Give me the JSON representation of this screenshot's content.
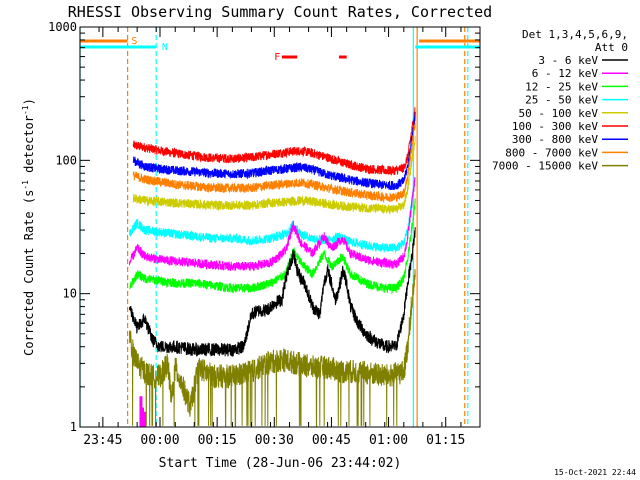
{
  "chart_data": {
    "type": "line",
    "title": "RHESSI Observing Summary Count Rates, Corrected",
    "xlabel": "Start Time (28-Jun-06 23:44:02)",
    "ylabel": "Corrected Count Rate (s",
    "ylabel_sup1": "-1",
    "ylabel_mid": " detector",
    "ylabel_sup2": "-1",
    "ylabel_end": ")",
    "y_scale": "log",
    "ylim": [
      1,
      1000
    ],
    "y_ticks": [
      {
        "v": 1,
        "label": "1"
      },
      {
        "v": 10,
        "label": "10"
      },
      {
        "v": 100,
        "label": "100"
      },
      {
        "v": 1000,
        "label": "1000"
      }
    ],
    "xlim_minutes": [
      -5,
      100
    ],
    "x_ticks": [
      {
        "m": 1,
        "label": "23:45"
      },
      {
        "m": 16,
        "label": "00:00"
      },
      {
        "m": 31,
        "label": "00:15"
      },
      {
        "m": 46,
        "label": "00:30"
      },
      {
        "m": 61,
        "label": "00:45"
      },
      {
        "m": 76,
        "label": "01:00"
      },
      {
        "m": 91,
        "label": "01:15"
      }
    ],
    "legend": {
      "position": "right",
      "header1": "Det 1,3,4,5,6,9,",
      "header2": "Att 0",
      "entries": [
        {
          "label": "3 - 6 keV",
          "color": "#000000"
        },
        {
          "label": "6 - 12 keV",
          "color": "#ff00ff"
        },
        {
          "label": "12 - 25 keV",
          "color": "#00ff00"
        },
        {
          "label": "25 - 50 keV",
          "color": "#00ffff"
        },
        {
          "label": "50 - 100 keV",
          "color": "#cccc00"
        },
        {
          "label": "100 - 300 keV",
          "color": "#ff0000"
        },
        {
          "label": "300 - 800 keV",
          "color": "#0000ff"
        },
        {
          "label": "800 - 7000 keV",
          "color": "#ff7f00"
        },
        {
          "label": "7000 - 15000 keV",
          "color": "#808000"
        }
      ]
    },
    "series": [
      {
        "color": "#ff0000",
        "start": 9,
        "end": 83,
        "points": [
          [
            9,
            130
          ],
          [
            12,
            125
          ],
          [
            16,
            118
          ],
          [
            20,
            113
          ],
          [
            25,
            108
          ],
          [
            30,
            104
          ],
          [
            35,
            103
          ],
          [
            40,
            105
          ],
          [
            45,
            111
          ],
          [
            50,
            116
          ],
          [
            53,
            118
          ],
          [
            56,
            113
          ],
          [
            60,
            105
          ],
          [
            65,
            94
          ],
          [
            70,
            87
          ],
          [
            75,
            84
          ],
          [
            78,
            84
          ],
          [
            80,
            88
          ],
          [
            81,
            105
          ],
          [
            82,
            160
          ],
          [
            83,
            250
          ]
        ]
      },
      {
        "color": "#0000ff",
        "start": 9,
        "end": 83,
        "points": [
          [
            9,
            100
          ],
          [
            12,
            90
          ],
          [
            16,
            86
          ],
          [
            20,
            84
          ],
          [
            25,
            82
          ],
          [
            30,
            80
          ],
          [
            35,
            79
          ],
          [
            40,
            80
          ],
          [
            45,
            84
          ],
          [
            50,
            87
          ],
          [
            53,
            89
          ],
          [
            56,
            85
          ],
          [
            60,
            78
          ],
          [
            65,
            72
          ],
          [
            70,
            68
          ],
          [
            75,
            65
          ],
          [
            78,
            65
          ],
          [
            80,
            70
          ],
          [
            81,
            90
          ],
          [
            82,
            140
          ],
          [
            83,
            220
          ]
        ]
      },
      {
        "color": "#ff7f00",
        "start": 9,
        "end": 83,
        "points": [
          [
            9,
            77
          ],
          [
            12,
            72
          ],
          [
            16,
            69
          ],
          [
            20,
            66
          ],
          [
            25,
            64
          ],
          [
            30,
            62
          ],
          [
            35,
            62
          ],
          [
            40,
            62
          ],
          [
            45,
            65
          ],
          [
            50,
            67
          ],
          [
            53,
            68
          ],
          [
            56,
            66
          ],
          [
            60,
            62
          ],
          [
            65,
            58
          ],
          [
            70,
            55
          ],
          [
            75,
            53
          ],
          [
            78,
            53
          ],
          [
            80,
            57
          ],
          [
            81,
            75
          ],
          [
            82,
            120
          ],
          [
            83,
            190
          ]
        ]
      },
      {
        "color": "#cccc00",
        "start": 9,
        "end": 83,
        "points": [
          [
            9,
            52
          ],
          [
            12,
            50
          ],
          [
            16,
            49
          ],
          [
            20,
            48
          ],
          [
            25,
            47
          ],
          [
            30,
            46
          ],
          [
            35,
            46
          ],
          [
            40,
            46
          ],
          [
            45,
            48
          ],
          [
            50,
            49
          ],
          [
            53,
            50
          ],
          [
            56,
            49
          ],
          [
            60,
            47
          ],
          [
            65,
            45
          ],
          [
            70,
            44
          ],
          [
            75,
            43
          ],
          [
            78,
            43
          ],
          [
            80,
            46
          ],
          [
            81,
            60
          ],
          [
            82,
            95
          ],
          [
            83,
            150
          ]
        ]
      },
      {
        "color": "#00ffff",
        "start": 8,
        "end": 83,
        "points": [
          [
            8,
            28
          ],
          [
            10,
            34
          ],
          [
            12,
            30
          ],
          [
            16,
            29
          ],
          [
            20,
            28
          ],
          [
            25,
            27
          ],
          [
            30,
            26
          ],
          [
            35,
            26
          ],
          [
            40,
            25
          ],
          [
            45,
            26
          ],
          [
            49,
            28
          ],
          [
            51,
            33
          ],
          [
            53,
            28
          ],
          [
            56,
            26
          ],
          [
            60,
            25
          ],
          [
            63,
            27
          ],
          [
            65,
            25
          ],
          [
            70,
            23
          ],
          [
            75,
            22
          ],
          [
            78,
            22
          ],
          [
            80,
            24
          ],
          [
            81,
            30
          ],
          [
            82,
            48
          ],
          [
            83,
            75
          ]
        ]
      },
      {
        "color": "#ff00ff",
        "start": 8,
        "end": 83,
        "points": [
          [
            8,
            17
          ],
          [
            10,
            22
          ],
          [
            12,
            19
          ],
          [
            16,
            18
          ],
          [
            20,
            17.5
          ],
          [
            25,
            17
          ],
          [
            30,
            16.5
          ],
          [
            35,
            16
          ],
          [
            40,
            16
          ],
          [
            45,
            17
          ],
          [
            49,
            21
          ],
          [
            51,
            33
          ],
          [
            53,
            24
          ],
          [
            56,
            20
          ],
          [
            59,
            27
          ],
          [
            61,
            22
          ],
          [
            64,
            26
          ],
          [
            66,
            20
          ],
          [
            70,
            18
          ],
          [
            75,
            17
          ],
          [
            78,
            16.5
          ],
          [
            80,
            19
          ],
          [
            81,
            26
          ],
          [
            82,
            45
          ],
          [
            83,
            75
          ]
        ]
      },
      {
        "color": "#00ff00",
        "start": 8,
        "end": 83,
        "points": [
          [
            8,
            11
          ],
          [
            10,
            14
          ],
          [
            12,
            13
          ],
          [
            16,
            12.5
          ],
          [
            20,
            12
          ],
          [
            25,
            12
          ],
          [
            30,
            11.5
          ],
          [
            35,
            11
          ],
          [
            40,
            11
          ],
          [
            45,
            12
          ],
          [
            49,
            14
          ],
          [
            51,
            21
          ],
          [
            53,
            17
          ],
          [
            56,
            14
          ],
          [
            59,
            20
          ],
          [
            61,
            16
          ],
          [
            64,
            19
          ],
          [
            66,
            14
          ],
          [
            70,
            12
          ],
          [
            75,
            11
          ],
          [
            78,
            11
          ],
          [
            80,
            13
          ],
          [
            81,
            18
          ],
          [
            82,
            30
          ],
          [
            83,
            48
          ]
        ]
      },
      {
        "color": "#000000",
        "start": 8,
        "end": 83,
        "points": [
          [
            8,
            8
          ],
          [
            10,
            5.5
          ],
          [
            12,
            6.5
          ],
          [
            14,
            4.5
          ],
          [
            16,
            4
          ],
          [
            20,
            4
          ],
          [
            25,
            3.8
          ],
          [
            30,
            3.8
          ],
          [
            35,
            3.8
          ],
          [
            38,
            4
          ],
          [
            40,
            7
          ],
          [
            42,
            7.5
          ],
          [
            44,
            7.5
          ],
          [
            46,
            8.5
          ],
          [
            48,
            9
          ],
          [
            49,
            13
          ],
          [
            51,
            20
          ],
          [
            52,
            15
          ],
          [
            53,
            13
          ],
          [
            54,
            12
          ],
          [
            56,
            8
          ],
          [
            58,
            7
          ],
          [
            59,
            12
          ],
          [
            60,
            15
          ],
          [
            61,
            12
          ],
          [
            62,
            9
          ],
          [
            63,
            11
          ],
          [
            64,
            15
          ],
          [
            65,
            12
          ],
          [
            66,
            8
          ],
          [
            68,
            6
          ],
          [
            70,
            5
          ],
          [
            72,
            4.5
          ],
          [
            75,
            4
          ],
          [
            78,
            4
          ],
          [
            80,
            7
          ],
          [
            81,
            12
          ],
          [
            82,
            18
          ],
          [
            83,
            30
          ]
        ]
      },
      {
        "color": "#808000",
        "start": 8,
        "end": 83,
        "points": [
          [
            8,
            5
          ],
          [
            9,
            3.5
          ],
          [
            10,
            3
          ],
          [
            12,
            2.6
          ],
          [
            14,
            2.4
          ],
          [
            16,
            2.4
          ],
          [
            18,
            3
          ],
          [
            19,
            1.6
          ],
          [
            20,
            2.8
          ],
          [
            22,
            2
          ],
          [
            24,
            1.4
          ],
          [
            26,
            2.8
          ],
          [
            30,
            2.4
          ],
          [
            35,
            2.4
          ],
          [
            40,
            2.6
          ],
          [
            44,
            3
          ],
          [
            48,
            3.2
          ],
          [
            52,
            3
          ],
          [
            56,
            2.8
          ],
          [
            60,
            2.8
          ],
          [
            64,
            2.6
          ],
          [
            68,
            2.6
          ],
          [
            72,
            2.5
          ],
          [
            76,
            2.4
          ],
          [
            80,
            2.6
          ],
          [
            81,
            4
          ],
          [
            82,
            8
          ],
          [
            83,
            14
          ]
        ]
      }
    ],
    "vlines": [
      {
        "m": -5,
        "color": "#00ffff",
        "style": "solid"
      },
      {
        "m": 7.5,
        "color": "#ff7f00",
        "style": "dash"
      },
      {
        "m": 15,
        "color": "#00ffff",
        "style": "dash"
      },
      {
        "m": 82.5,
        "color": "#00ffff",
        "style": "solid"
      },
      {
        "m": 83.5,
        "color": "#ff7f00",
        "style": "solid"
      },
      {
        "m": 96,
        "color": "#ff7f00",
        "style": "dash"
      },
      {
        "m": 96.8,
        "color": "#00ffff",
        "style": "dash"
      }
    ],
    "top_bars": [
      {
        "label": "S",
        "color": "#ff7f00",
        "m0": -5,
        "m1": 7.5,
        "row": "top",
        "label_at": 8.5
      },
      {
        "label": "N",
        "color": "#00ffff",
        "m0": -5,
        "m1": 15,
        "row": "bottom",
        "label_at": 16.5
      },
      {
        "label": "",
        "color": "#ff7f00",
        "m0": 84,
        "m1": 100,
        "row": "top"
      },
      {
        "label": "",
        "color": "#00ffff",
        "m0": 83,
        "m1": 100,
        "row": "bottom"
      }
    ],
    "flare_markers": {
      "label": "F",
      "label_at": 46,
      "color": "#ff0000",
      "segments": [
        [
          48,
          52
        ],
        [
          63,
          65
        ]
      ]
    },
    "magenta_spikes": [
      [
        11,
        1,
        1.7
      ],
      [
        11.4,
        1,
        1.4
      ],
      [
        12,
        1,
        1.3
      ]
    ],
    "footer_date": "15-Oct-2021 22:44"
  }
}
